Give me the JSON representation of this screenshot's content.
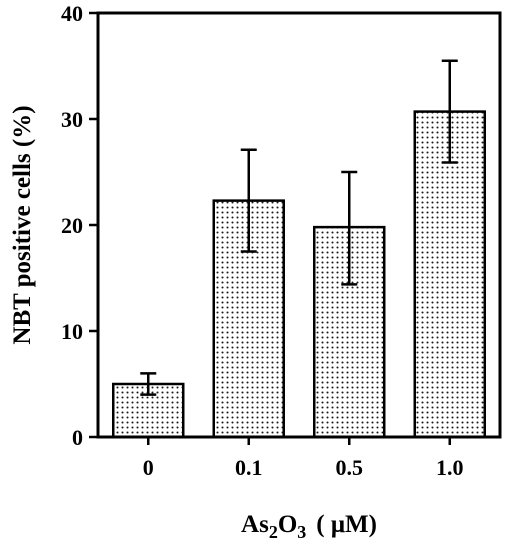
{
  "chart_data": {
    "type": "bar",
    "categories": [
      "0",
      "0.1",
      "0.5",
      "1.0"
    ],
    "values": [
      5.0,
      22.3,
      19.8,
      30.7
    ],
    "error_up": [
      1.0,
      4.8,
      5.2,
      4.8
    ],
    "error_down": [
      1.0,
      4.8,
      5.4,
      4.8
    ],
    "ylabel": "NBT positive cells (%)",
    "xlabel": {
      "base": "As",
      "sub1": "2",
      "mid": "O",
      "sub2": "3",
      "unit": "( μM)"
    },
    "ylim": [
      0,
      40
    ],
    "yticks": [
      0,
      10,
      20,
      30,
      40
    ],
    "bar_pattern": "dotted",
    "grid": false,
    "legend": "none"
  }
}
